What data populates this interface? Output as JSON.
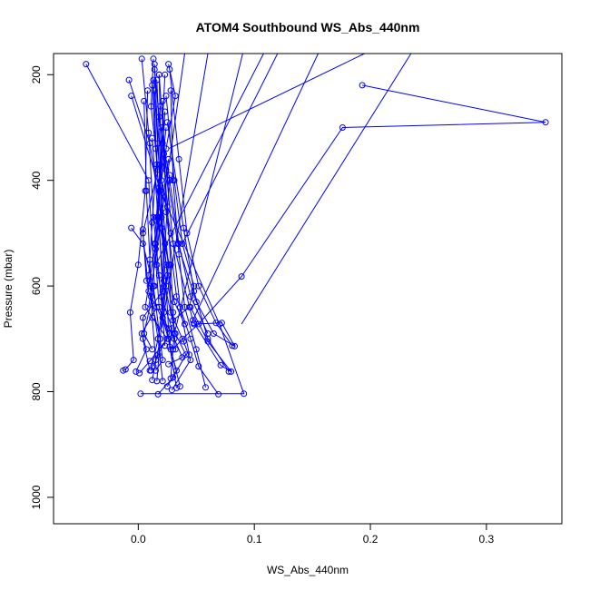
{
  "chart_data": {
    "type": "line",
    "title": "ATOM4 Southbound WS_Abs_440nm",
    "xlabel": "WS_Abs_440nm",
    "ylabel": "Pressure (mbar)",
    "xlim": [
      -0.073,
      0.365
    ],
    "ylim": [
      1050,
      160
    ],
    "y_reversed": true,
    "x_ticks": [
      0.0,
      0.1,
      0.2,
      0.3
    ],
    "x_tick_labels": [
      "0.0",
      "0.1",
      "0.2",
      "0.3"
    ],
    "y_ticks": [
      200,
      400,
      600,
      800,
      1000
    ],
    "y_tick_labels": [
      "200",
      "400",
      "600",
      "800",
      "1000"
    ],
    "grid": false,
    "legend": "none",
    "line_color": "#0000ff",
    "marker": "open-circle",
    "series": [
      {
        "x": [
          0.002,
          0.091,
          0.07,
          0.019,
          -0.006
        ],
        "y": [
          804,
          804,
          672,
          420,
          240
        ]
      },
      {
        "x": [
          0.001,
          0.01,
          0.025,
          0.006,
          0.015,
          0.021
        ],
        "y": [
          765,
          742,
          700,
          640,
          520,
          330
        ]
      },
      {
        "x": [
          0.012,
          0.019,
          0.009,
          0.004,
          0.017,
          0.011,
          0.013
        ],
        "y": [
          778,
          700,
          610,
          500,
          380,
          260,
          170
        ]
      },
      {
        "x": [
          0.029,
          0.045,
          0.039,
          0.028,
          0.027,
          0.016,
          0.024
        ],
        "y": [
          797,
          740,
          705,
          650,
          560,
          470,
          300
        ]
      },
      {
        "x": [
          0.017,
          0.03,
          0.041,
          0.032,
          0.022,
          0.018
        ],
        "y": [
          805,
          773,
          730,
          690,
          590,
          200
        ]
      },
      {
        "x": [
          0.025,
          0.033,
          0.027,
          0.029,
          0.02,
          0.023,
          0.027
        ],
        "y": [
          790,
          760,
          715,
          680,
          620,
          520,
          390
        ]
      },
      {
        "x": [
          0.026,
          0.038,
          0.031,
          0.021,
          0.026,
          0.019,
          0.014
        ],
        "y": [
          748,
          735,
          700,
          660,
          560,
          410,
          230
        ]
      },
      {
        "x": [
          0.013,
          0.017,
          0.027,
          0.011,
          0.015,
          0.023
        ],
        "y": [
          752,
          730,
          690,
          620,
          530,
          270
        ]
      },
      {
        "x": [
          0.012,
          0.005,
          0.004,
          0.021,
          0.018,
          0.026
        ],
        "y": [
          720,
          690,
          660,
          610,
          480,
          360
        ]
      },
      {
        "x": [
          -0.013,
          -0.011,
          -0.004,
          -0.007,
          0.0,
          0.006,
          0.008
        ],
        "y": [
          760,
          758,
          740,
          650,
          560,
          420,
          230
        ]
      },
      {
        "x": [
          -0.002,
          0.007,
          0.003,
          0.016,
          0.009,
          0.012,
          0.019
        ],
        "y": [
          762,
          720,
          690,
          640,
          580,
          480,
          260
        ]
      },
      {
        "x": [
          -0.045,
          0.009,
          0.014,
          0.004,
          0.01
        ],
        "y": [
          180,
          400,
          600,
          700,
          760
        ]
      },
      {
        "x": [
          -0.008,
          0.01,
          0.026,
          0.017,
          0.021
        ],
        "y": [
          210,
          330,
          560,
          700,
          780
        ]
      },
      {
        "x": [
          -0.006,
          0.004,
          0.013,
          0.021,
          0.015
        ],
        "y": [
          490,
          520,
          600,
          740,
          760
        ]
      },
      {
        "x": [
          0.004,
          0.007,
          0.01,
          0.017,
          0.011
        ],
        "y": [
          493,
          590,
          600,
          700,
          760
        ]
      },
      {
        "x": [
          0.193,
          0.351,
          0.176,
          0.089,
          0.052,
          0.038,
          0.03
        ],
        "y": [
          220,
          290,
          300,
          582,
          672,
          700,
          720
        ]
      },
      {
        "x": [
          0.047,
          0.028,
          0.02,
          0.024,
          0.032,
          0.026
        ],
        "y": [
          665,
          500,
          400,
          340,
          240,
          180
        ]
      },
      {
        "x": [
          0.058,
          0.05,
          0.04,
          0.035,
          0.03,
          0.028
        ],
        "y": [
          792,
          720,
          640,
          540,
          400,
          230
        ]
      },
      {
        "x": [
          0.081,
          0.067,
          0.052,
          0.042,
          0.035,
          0.027
        ],
        "y": [
          713,
          670,
          600,
          500,
          360,
          190
        ]
      },
      {
        "x": [
          0.078,
          0.06,
          0.048,
          0.039,
          0.025
        ],
        "y": [
          762,
          700,
          610,
          490,
          290
        ]
      },
      {
        "x": [
          0.04,
          0.031,
          0.024,
          0.019,
          0.015,
          0.012
        ],
        "y": [
          672,
          630,
          560,
          460,
          340,
          220
        ]
      },
      {
        "x": [
          0.069,
          0.052,
          0.045,
          0.033,
          0.024,
          0.021
        ],
        "y": [
          805,
          752,
          700,
          620,
          460,
          250
        ]
      },
      {
        "x": [
          0.036,
          0.028,
          0.022,
          0.016,
          0.018,
          0.023
        ],
        "y": [
          790,
          720,
          650,
          560,
          420,
          200
        ]
      },
      {
        "x": [
          0.033,
          0.026,
          0.018,
          0.014,
          0.019,
          0.016
        ],
        "y": [
          793,
          700,
          640,
          520,
          370,
          210
        ]
      },
      {
        "x": [
          0.023,
          0.021,
          0.018,
          0.013,
          0.009,
          0.003
        ],
        "y": [
          713,
          660,
          580,
          470,
          310,
          170
        ]
      },
      {
        "x": [
          0.015,
          0.012,
          0.01,
          0.007,
          0.005
        ],
        "y": [
          740,
          660,
          550,
          420,
          250
        ]
      },
      {
        "x": [
          0.032,
          0.03,
          0.028,
          0.025,
          0.02
        ],
        "y": [
          720,
          650,
          560,
          450,
          300
        ]
      },
      {
        "x": [
          0.044,
          0.036,
          0.03,
          0.024,
          0.018
        ],
        "y": [
          730,
          640,
          520,
          380,
          200
        ]
      },
      {
        "x": [
          0.048,
          0.072,
          0.083,
          0.065,
          0.05,
          0.034,
          0.022
        ],
        "y": [
          672,
          670,
          714,
          690,
          630,
          520,
          350
        ]
      },
      {
        "x": [
          0.048,
          0.071,
          0.08,
          0.06,
          0.045
        ],
        "y": [
          670,
          750,
          762,
          705,
          640
        ]
      },
      {
        "x": [
          0.06,
          0.045,
          0.035,
          0.027,
          0.018,
          0.014
        ],
        "y": [
          690,
          620,
          520,
          400,
          280,
          190
        ]
      },
      {
        "x": [
          0.026,
          0.024,
          0.02,
          0.016,
          0.013
        ],
        "y": [
          680,
          600,
          490,
          370,
          210
        ]
      },
      {
        "x": [
          0.016,
          0.019,
          0.022,
          0.017,
          0.012
        ],
        "y": [
          780,
          700,
          600,
          470,
          320
        ]
      },
      {
        "x": [
          0.028,
          0.031,
          0.025,
          0.02,
          0.017,
          0.014
        ],
        "y": [
          775,
          690,
          580,
          470,
          330,
          180
        ]
      },
      {
        "x": [
          0.03,
          0.044,
          0.048,
          0.038,
          0.031,
          0.024
        ],
        "y": [
          665,
          640,
          600,
          520,
          400,
          240
        ]
      }
    ],
    "extended_lines": [
      {
        "x": [
          0.009,
          0.04
        ],
        "y": [
          640,
          160
        ]
      },
      {
        "x": [
          0.02,
          0.06
        ],
        "y": [
          680,
          160
        ]
      },
      {
        "x": [
          0.03,
          0.09
        ],
        "y": [
          700,
          160
        ]
      },
      {
        "x": [
          0.047,
          0.155
        ],
        "y": [
          665,
          160
        ]
      },
      {
        "x": [
          0.089,
          0.235
        ],
        "y": [
          672,
          160
        ]
      },
      {
        "x": [
          0.026,
          0.195
        ],
        "y": [
          340,
          160
        ]
      },
      {
        "x": [
          0.038,
          0.12
        ],
        "y": [
          520,
          160
        ]
      },
      {
        "x": [
          0.015,
          0.108
        ],
        "y": [
          560,
          160
        ]
      }
    ]
  }
}
